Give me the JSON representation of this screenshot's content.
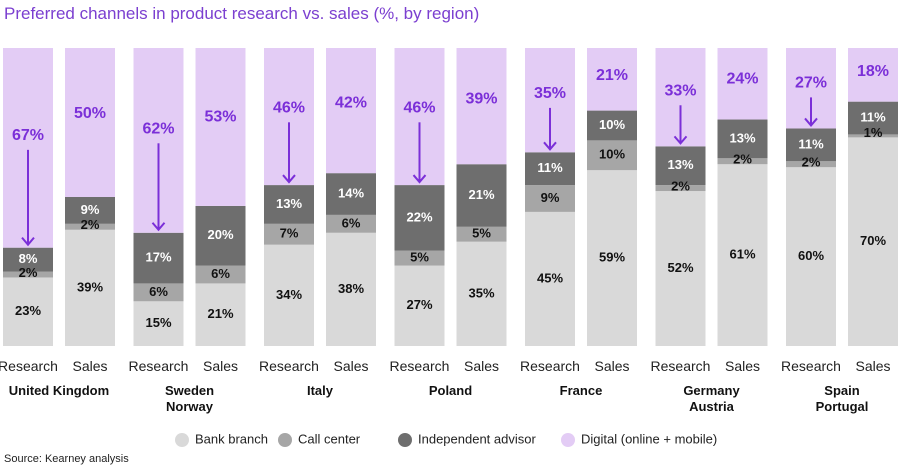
{
  "title": "Preferred channels in product research vs. sales (%, by region)",
  "source": "Source: Kearney analysis",
  "chart_data": {
    "type": "bar",
    "subtype": "stacked-100",
    "title": "Preferred channels in product research vs. sales (%, by region)",
    "y_unit": "%",
    "ylim": [
      0,
      100
    ],
    "grid": false,
    "legend_position": "bottom",
    "series": [
      {
        "name": "Bank branch",
        "color": "#d9d9d9"
      },
      {
        "name": "Call center",
        "color": "#a6a6a6"
      },
      {
        "name": "Independent advisor",
        "color": "#6e6e6e"
      },
      {
        "name": "Digital (online + mobile)",
        "color": "#e3ccf5"
      }
    ],
    "bar_labels": [
      "Research",
      "Sales"
    ],
    "groups": [
      {
        "name": [
          "United Kingdom"
        ],
        "bars": [
          {
            "label": "Research",
            "values": [
              23,
              2,
              8,
              67
            ],
            "arrow": true
          },
          {
            "label": "Sales",
            "values": [
              39,
              2,
              9,
              50
            ],
            "arrow": false
          }
        ]
      },
      {
        "name": [
          "Sweden",
          "Norway"
        ],
        "bars": [
          {
            "label": "Research",
            "values": [
              15,
              6,
              17,
              62
            ],
            "arrow": true
          },
          {
            "label": "Sales",
            "values": [
              21,
              6,
              20,
              53
            ],
            "arrow": false
          }
        ]
      },
      {
        "name": [
          "Italy"
        ],
        "bars": [
          {
            "label": "Research",
            "values": [
              34,
              7,
              13,
              46
            ],
            "arrow": true
          },
          {
            "label": "Sales",
            "values": [
              38,
              6,
              14,
              42
            ],
            "arrow": false
          }
        ]
      },
      {
        "name": [
          "Poland"
        ],
        "bars": [
          {
            "label": "Research",
            "values": [
              27,
              5,
              22,
              46
            ],
            "arrow": true
          },
          {
            "label": "Sales",
            "values": [
              35,
              5,
              21,
              39
            ],
            "arrow": false
          }
        ]
      },
      {
        "name": [
          "France"
        ],
        "bars": [
          {
            "label": "Research",
            "values": [
              45,
              9,
              11,
              35
            ],
            "arrow": true
          },
          {
            "label": "Sales",
            "values": [
              59,
              10,
              10,
              21
            ],
            "arrow": false
          }
        ]
      },
      {
        "name": [
          "Germany",
          "Austria"
        ],
        "bars": [
          {
            "label": "Research",
            "values": [
              52,
              2,
              13,
              33
            ],
            "arrow": true
          },
          {
            "label": "Sales",
            "values": [
              61,
              2,
              13,
              24
            ],
            "arrow": false
          }
        ]
      },
      {
        "name": [
          "Spain",
          "Portugal"
        ],
        "bars": [
          {
            "label": "Research",
            "values": [
              60,
              2,
              11,
              27
            ],
            "arrow": true
          },
          {
            "label": "Sales",
            "values": [
              70,
              1,
              11,
              18
            ],
            "arrow": false
          }
        ]
      }
    ]
  }
}
